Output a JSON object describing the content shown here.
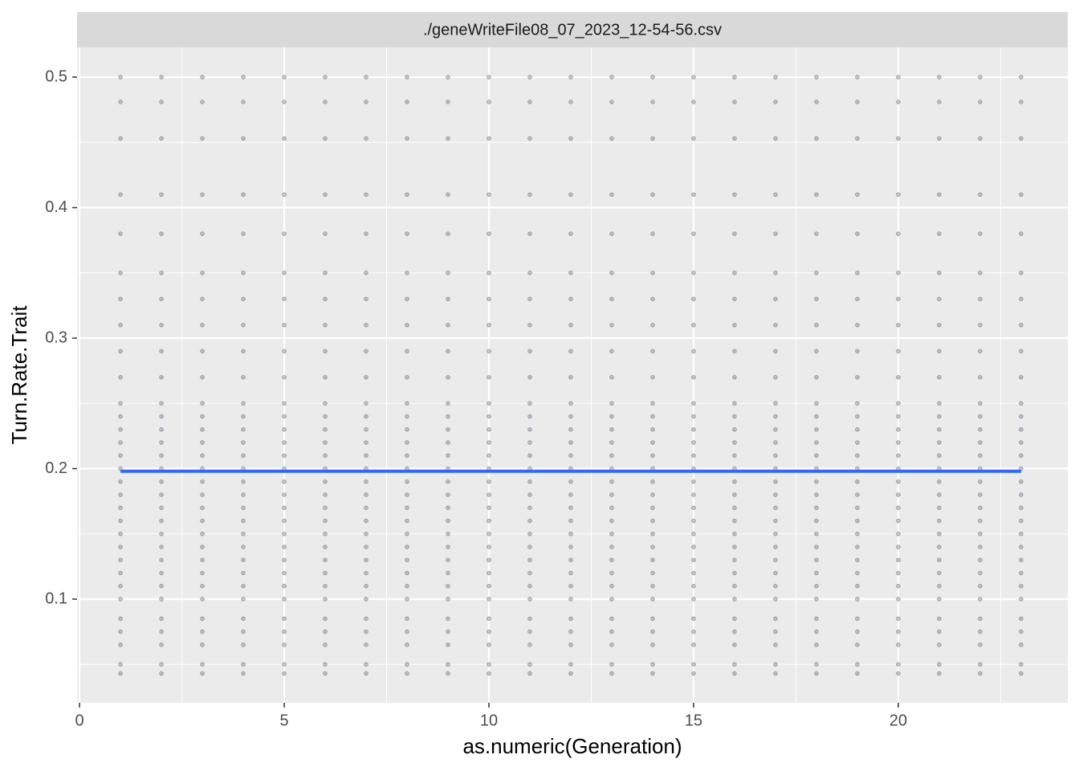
{
  "chart_data": {
    "type": "scatter",
    "strip_title": "./geneWriteFile08_07_2023_12-54-56.csv",
    "x_label": "as.numeric(Generation)",
    "y_label": "Turn.Rate.Trait",
    "xlim": [
      -0.06,
      24.14
    ],
    "ylim": [
      0.0206,
      0.5228
    ],
    "xticks": [
      0,
      5,
      10,
      15,
      20
    ],
    "yticks": [
      0.1,
      0.2,
      0.3,
      0.4,
      0.5
    ],
    "grid": true,
    "point_color": "#5a6170",
    "columns": [
      {
        "x": 1,
        "y": [
          0.043,
          0.05,
          0.065,
          0.075,
          0.085,
          0.1,
          0.11,
          0.12,
          0.13,
          0.14,
          0.15,
          0.16,
          0.17,
          0.18,
          0.19,
          0.2,
          0.21,
          0.22,
          0.23,
          0.24,
          0.25,
          0.27,
          0.29,
          0.31,
          0.33,
          0.35,
          0.38,
          0.41,
          0.453,
          0.481,
          0.5
        ]
      },
      {
        "x": 2,
        "y": [
          0.043,
          0.05,
          0.065,
          0.075,
          0.085,
          0.1,
          0.11,
          0.12,
          0.13,
          0.14,
          0.15,
          0.16,
          0.17,
          0.18,
          0.19,
          0.2,
          0.21,
          0.22,
          0.23,
          0.24,
          0.25,
          0.27,
          0.29,
          0.31,
          0.33,
          0.35,
          0.38,
          0.41,
          0.453,
          0.481,
          0.5
        ]
      },
      {
        "x": 3,
        "y": [
          0.043,
          0.05,
          0.065,
          0.075,
          0.085,
          0.1,
          0.11,
          0.12,
          0.13,
          0.14,
          0.15,
          0.16,
          0.17,
          0.18,
          0.19,
          0.2,
          0.21,
          0.22,
          0.23,
          0.24,
          0.25,
          0.27,
          0.29,
          0.31,
          0.33,
          0.35,
          0.38,
          0.41,
          0.453,
          0.481,
          0.5
        ]
      },
      {
        "x": 4,
        "y": [
          0.043,
          0.05,
          0.065,
          0.075,
          0.085,
          0.1,
          0.11,
          0.12,
          0.13,
          0.14,
          0.15,
          0.16,
          0.17,
          0.18,
          0.19,
          0.2,
          0.21,
          0.22,
          0.23,
          0.24,
          0.25,
          0.27,
          0.29,
          0.31,
          0.33,
          0.35,
          0.38,
          0.41,
          0.453,
          0.481,
          0.5
        ]
      },
      {
        "x": 5,
        "y": [
          0.043,
          0.05,
          0.065,
          0.075,
          0.085,
          0.1,
          0.11,
          0.12,
          0.13,
          0.14,
          0.15,
          0.16,
          0.17,
          0.18,
          0.19,
          0.2,
          0.21,
          0.22,
          0.23,
          0.24,
          0.25,
          0.27,
          0.29,
          0.31,
          0.33,
          0.35,
          0.38,
          0.41,
          0.453,
          0.481,
          0.5
        ]
      },
      {
        "x": 6,
        "y": [
          0.043,
          0.05,
          0.065,
          0.075,
          0.085,
          0.1,
          0.11,
          0.12,
          0.13,
          0.14,
          0.15,
          0.16,
          0.17,
          0.18,
          0.19,
          0.2,
          0.21,
          0.22,
          0.23,
          0.24,
          0.25,
          0.27,
          0.29,
          0.31,
          0.33,
          0.35,
          0.38,
          0.41,
          0.453,
          0.481,
          0.5
        ]
      },
      {
        "x": 7,
        "y": [
          0.043,
          0.05,
          0.065,
          0.075,
          0.085,
          0.1,
          0.11,
          0.12,
          0.13,
          0.14,
          0.15,
          0.16,
          0.17,
          0.18,
          0.19,
          0.2,
          0.21,
          0.22,
          0.23,
          0.24,
          0.25,
          0.27,
          0.29,
          0.31,
          0.33,
          0.35,
          0.38,
          0.41,
          0.453,
          0.481,
          0.5
        ]
      },
      {
        "x": 8,
        "y": [
          0.043,
          0.05,
          0.065,
          0.075,
          0.085,
          0.1,
          0.11,
          0.12,
          0.13,
          0.14,
          0.15,
          0.16,
          0.17,
          0.18,
          0.19,
          0.2,
          0.21,
          0.22,
          0.23,
          0.24,
          0.25,
          0.27,
          0.29,
          0.31,
          0.33,
          0.35,
          0.38,
          0.41,
          0.453,
          0.481,
          0.5
        ]
      },
      {
        "x": 9,
        "y": [
          0.043,
          0.05,
          0.065,
          0.075,
          0.085,
          0.1,
          0.11,
          0.12,
          0.13,
          0.14,
          0.15,
          0.16,
          0.17,
          0.18,
          0.19,
          0.2,
          0.21,
          0.22,
          0.23,
          0.24,
          0.25,
          0.27,
          0.29,
          0.31,
          0.33,
          0.35,
          0.38,
          0.41,
          0.453,
          0.481,
          0.5
        ]
      },
      {
        "x": 10,
        "y": [
          0.043,
          0.05,
          0.065,
          0.075,
          0.085,
          0.1,
          0.11,
          0.12,
          0.13,
          0.14,
          0.15,
          0.16,
          0.17,
          0.18,
          0.19,
          0.2,
          0.21,
          0.22,
          0.23,
          0.24,
          0.25,
          0.27,
          0.29,
          0.31,
          0.33,
          0.35,
          0.38,
          0.41,
          0.453,
          0.481,
          0.5
        ]
      },
      {
        "x": 11,
        "y": [
          0.043,
          0.05,
          0.065,
          0.075,
          0.085,
          0.1,
          0.11,
          0.12,
          0.13,
          0.14,
          0.15,
          0.16,
          0.17,
          0.18,
          0.19,
          0.2,
          0.21,
          0.22,
          0.23,
          0.24,
          0.25,
          0.27,
          0.29,
          0.31,
          0.33,
          0.35,
          0.38,
          0.41,
          0.453,
          0.481,
          0.5
        ]
      },
      {
        "x": 12,
        "y": [
          0.043,
          0.05,
          0.065,
          0.075,
          0.085,
          0.1,
          0.11,
          0.12,
          0.13,
          0.14,
          0.15,
          0.16,
          0.17,
          0.18,
          0.19,
          0.2,
          0.21,
          0.22,
          0.23,
          0.24,
          0.25,
          0.27,
          0.29,
          0.31,
          0.33,
          0.35,
          0.38,
          0.41,
          0.453,
          0.481,
          0.5
        ]
      },
      {
        "x": 13,
        "y": [
          0.043,
          0.05,
          0.065,
          0.075,
          0.085,
          0.1,
          0.11,
          0.12,
          0.13,
          0.14,
          0.15,
          0.16,
          0.17,
          0.18,
          0.19,
          0.2,
          0.21,
          0.22,
          0.23,
          0.24,
          0.25,
          0.27,
          0.29,
          0.31,
          0.33,
          0.35,
          0.38,
          0.41,
          0.453,
          0.481,
          0.5
        ]
      },
      {
        "x": 14,
        "y": [
          0.043,
          0.05,
          0.065,
          0.075,
          0.085,
          0.1,
          0.11,
          0.12,
          0.13,
          0.14,
          0.15,
          0.16,
          0.17,
          0.18,
          0.19,
          0.2,
          0.21,
          0.22,
          0.23,
          0.24,
          0.25,
          0.27,
          0.29,
          0.31,
          0.33,
          0.35,
          0.38,
          0.41,
          0.453,
          0.481,
          0.5
        ]
      },
      {
        "x": 15,
        "y": [
          0.043,
          0.05,
          0.065,
          0.075,
          0.085,
          0.1,
          0.11,
          0.12,
          0.13,
          0.14,
          0.15,
          0.16,
          0.17,
          0.18,
          0.19,
          0.2,
          0.21,
          0.22,
          0.23,
          0.24,
          0.25,
          0.27,
          0.29,
          0.31,
          0.33,
          0.35,
          0.38,
          0.41,
          0.453,
          0.481,
          0.5
        ]
      },
      {
        "x": 16,
        "y": [
          0.043,
          0.05,
          0.065,
          0.075,
          0.085,
          0.1,
          0.11,
          0.12,
          0.13,
          0.14,
          0.15,
          0.16,
          0.17,
          0.18,
          0.19,
          0.2,
          0.21,
          0.22,
          0.23,
          0.24,
          0.25,
          0.27,
          0.29,
          0.31,
          0.33,
          0.35,
          0.38,
          0.41,
          0.453,
          0.481,
          0.5
        ]
      },
      {
        "x": 17,
        "y": [
          0.043,
          0.05,
          0.065,
          0.075,
          0.085,
          0.1,
          0.11,
          0.12,
          0.13,
          0.14,
          0.15,
          0.16,
          0.17,
          0.18,
          0.19,
          0.2,
          0.21,
          0.22,
          0.23,
          0.24,
          0.25,
          0.27,
          0.29,
          0.31,
          0.33,
          0.35,
          0.38,
          0.41,
          0.453,
          0.481,
          0.5
        ]
      },
      {
        "x": 18,
        "y": [
          0.043,
          0.05,
          0.065,
          0.075,
          0.085,
          0.1,
          0.11,
          0.12,
          0.13,
          0.14,
          0.15,
          0.16,
          0.17,
          0.18,
          0.19,
          0.2,
          0.21,
          0.22,
          0.23,
          0.24,
          0.25,
          0.27,
          0.29,
          0.31,
          0.33,
          0.35,
          0.38,
          0.41,
          0.453,
          0.481,
          0.5
        ]
      },
      {
        "x": 19,
        "y": [
          0.043,
          0.05,
          0.065,
          0.075,
          0.085,
          0.1,
          0.11,
          0.12,
          0.13,
          0.14,
          0.15,
          0.16,
          0.17,
          0.18,
          0.19,
          0.2,
          0.21,
          0.22,
          0.23,
          0.24,
          0.25,
          0.27,
          0.29,
          0.31,
          0.33,
          0.35,
          0.38,
          0.41,
          0.453,
          0.481,
          0.5
        ]
      },
      {
        "x": 20,
        "y": [
          0.043,
          0.05,
          0.065,
          0.075,
          0.085,
          0.1,
          0.11,
          0.12,
          0.13,
          0.14,
          0.15,
          0.16,
          0.17,
          0.18,
          0.19,
          0.2,
          0.21,
          0.22,
          0.23,
          0.24,
          0.25,
          0.27,
          0.29,
          0.31,
          0.33,
          0.35,
          0.38,
          0.41,
          0.453,
          0.481,
          0.5
        ]
      },
      {
        "x": 21,
        "y": [
          0.043,
          0.05,
          0.065,
          0.075,
          0.085,
          0.1,
          0.11,
          0.12,
          0.13,
          0.14,
          0.15,
          0.16,
          0.17,
          0.18,
          0.19,
          0.2,
          0.21,
          0.22,
          0.23,
          0.24,
          0.25,
          0.27,
          0.29,
          0.31,
          0.33,
          0.35,
          0.38,
          0.41,
          0.453,
          0.481,
          0.5
        ]
      },
      {
        "x": 22,
        "y": [
          0.043,
          0.05,
          0.065,
          0.075,
          0.085,
          0.1,
          0.11,
          0.12,
          0.13,
          0.14,
          0.15,
          0.16,
          0.17,
          0.18,
          0.19,
          0.2,
          0.21,
          0.22,
          0.23,
          0.24,
          0.25,
          0.27,
          0.29,
          0.31,
          0.33,
          0.35,
          0.38,
          0.41,
          0.453,
          0.481,
          0.5
        ]
      },
      {
        "x": 23,
        "y": [
          0.043,
          0.05,
          0.065,
          0.075,
          0.085,
          0.1,
          0.11,
          0.12,
          0.13,
          0.14,
          0.15,
          0.16,
          0.17,
          0.18,
          0.19,
          0.2,
          0.21,
          0.22,
          0.23,
          0.24,
          0.25,
          0.27,
          0.29,
          0.31,
          0.33,
          0.35,
          0.38,
          0.41,
          0.453,
          0.481,
          0.5
        ]
      }
    ],
    "trend": {
      "x": [
        1,
        23
      ],
      "values": [
        0.198,
        0.198
      ],
      "color": "#3366ff"
    }
  }
}
